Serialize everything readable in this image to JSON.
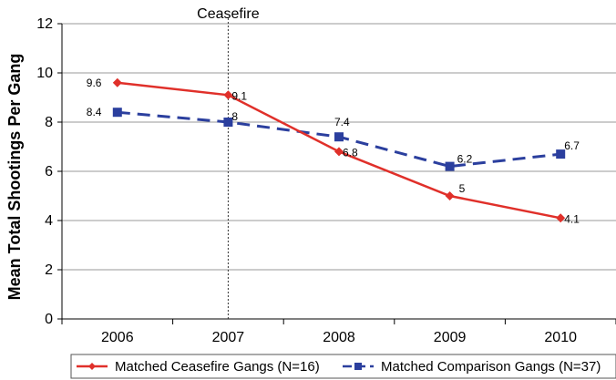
{
  "chart_data": {
    "type": "line",
    "categories": [
      "2006",
      "2007",
      "2008",
      "2009",
      "2010"
    ],
    "series": [
      {
        "name": "Matched Ceasefire Gangs (N=16)",
        "values": [
          9.6,
          9.1,
          6.8,
          5,
          4.1
        ],
        "labels": [
          "9.6",
          "9.1",
          "6.8",
          "5",
          "4.1"
        ],
        "color": "#e0302a",
        "marker": "diamond",
        "line_style": "solid"
      },
      {
        "name": "Matched Comparison Gangs (N=37)",
        "values": [
          8.4,
          8,
          7.4,
          6.2,
          6.7
        ],
        "labels": [
          "8.4",
          "8",
          "7.4",
          "6.2",
          "6.7"
        ],
        "color": "#2b3f9e",
        "marker": "square",
        "line_style": "dashed"
      }
    ],
    "title": "",
    "xlabel": "",
    "ylabel": "Mean Total Shootings Per Gang",
    "ylim": [
      0,
      12
    ],
    "yticks": [
      "0",
      "2",
      "4",
      "6",
      "8",
      "10",
      "12"
    ],
    "grid": true,
    "legend_placement": "bottom",
    "annotation": {
      "text": "Ceasefire",
      "category": "2007",
      "line_style": "dotted"
    }
  }
}
